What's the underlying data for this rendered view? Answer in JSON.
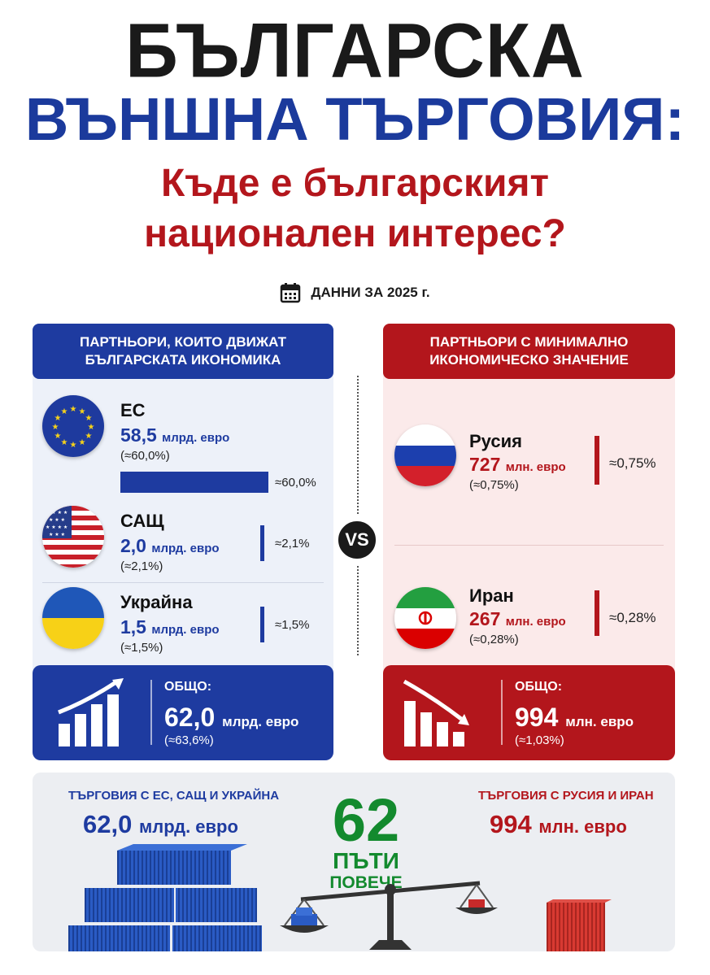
{
  "title": {
    "line1": "БЪЛГАРСКА",
    "line2": "ВЪНШНА ТЪРГОВИЯ:",
    "line3": "Къде е българският",
    "line4": "национален интерес?"
  },
  "date_label": "ДАННИ ЗА 2025 г.",
  "vs_label": "VS",
  "left_panel": {
    "header_line1": "ПАРТНЬОРИ, КОИТО ДВИЖАТ",
    "header_line2": "БЪЛГАРСКАТА ИКОНОМИКА",
    "partners": [
      {
        "name": "ЕС",
        "amount": "58,5",
        "unit": "млрд. евро",
        "share": "(≈60,0%)",
        "bar_label": "≈60,0%",
        "share_value": 60.0,
        "flag": "eu-flag-icon"
      },
      {
        "name": "САЩ",
        "amount": "2,0",
        "unit": "млрд. евро",
        "share": "(≈2,1%)",
        "bar_label": "≈2,1%",
        "share_value": 2.1,
        "flag": "usa-flag-icon"
      },
      {
        "name": "Украйна",
        "amount": "1,5",
        "unit": "млрд. евро",
        "share": "(≈1,5%)",
        "bar_label": "≈1,5%",
        "share_value": 1.5,
        "flag": "ukraine-flag-icon"
      }
    ],
    "total": {
      "label": "ОБЩО:",
      "amount": "62,0",
      "unit": "млрд. евро",
      "share": "(≈63,6%)",
      "icon": "rising-chart-icon"
    }
  },
  "right_panel": {
    "header_line1": "ПАРТНЬОРИ С МИНИМАЛНО",
    "header_line2": "ИКОНОМИЧЕСКО ЗНАЧЕНИЕ",
    "partners": [
      {
        "name": "Русия",
        "amount": "727",
        "unit": "млн. евро",
        "share": "(≈0,75%)",
        "bar_label": "≈0,75%",
        "share_value": 0.75,
        "flag": "russia-flag-icon"
      },
      {
        "name": "Иран",
        "amount": "267",
        "unit": "млн. евро",
        "share": "(≈0,28%)",
        "bar_label": "≈0,28%",
        "share_value": 0.28,
        "flag": "iran-flag-icon"
      }
    ],
    "total": {
      "label": "ОБЩО:",
      "amount": "994",
      "unit": "млн. евро",
      "share": "(≈1,03%)",
      "icon": "falling-chart-icon"
    }
  },
  "bottom": {
    "left_label": "ТЪРГОВИЯ С ЕС, САЩ И УКРАЙНА",
    "left_amount": "62,0",
    "left_unit": "млрд. евро",
    "multiplier": "62",
    "multiplier_line1": "ПЪТИ",
    "multiplier_line2": "ПОВЕЧЕ",
    "right_label": "ТЪРГОВИЯ С РУСИЯ И ИРАН",
    "right_amount": "994",
    "right_unit": "млн. евро",
    "icons": [
      "containers-stack-icon",
      "balance-scale-icon",
      "single-container-icon"
    ]
  },
  "colors": {
    "blue": "#1e3ba0",
    "red": "#b3161c",
    "green": "#138a2e"
  }
}
